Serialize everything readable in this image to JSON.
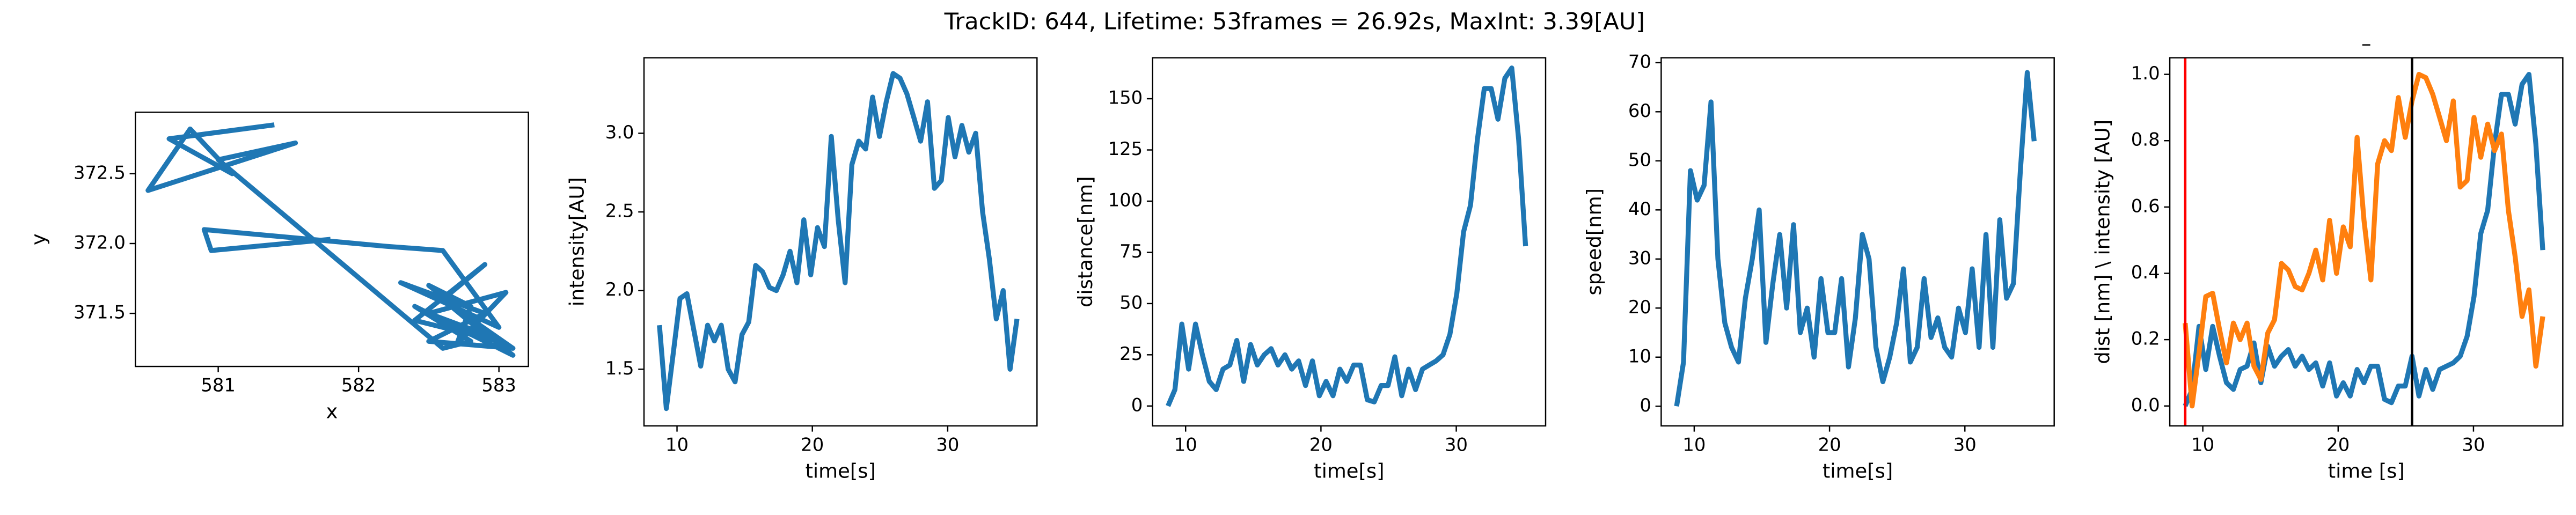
{
  "title": "TrackID: 644, Lifetime: 53frames = 26.92s, MaxInt: 3.39[AU]",
  "chart_data": [
    {
      "type": "line",
      "xlabel": "x",
      "ylabel": "y",
      "x": [
        581.8,
        580.95,
        580.9,
        582.2,
        582.6,
        583.0,
        582.3,
        582.9,
        582.5,
        583.1,
        582.6,
        582.9,
        582.4,
        583.0,
        582.5,
        582.8,
        582.7,
        583.05,
        582.5,
        582.9,
        582.6,
        583.1,
        582.4,
        582.8,
        582.6,
        581.0,
        581.55,
        580.5,
        580.8,
        581.1,
        580.65,
        581.4
      ],
      "series": [
        {
          "color": "#1f77b4",
          "values": [
            372.03,
            371.95,
            372.1,
            371.98,
            371.95,
            371.4,
            371.72,
            371.5,
            371.3,
            371.25,
            371.6,
            371.85,
            371.45,
            371.3,
            371.7,
            371.55,
            371.28,
            371.65,
            371.5,
            371.35,
            371.6,
            371.2,
            371.55,
            371.3,
            371.25,
            372.6,
            372.72,
            372.38,
            372.82,
            372.5,
            372.75,
            372.85
          ]
        }
      ],
      "xlim": [
        580.41,
        583.21
      ],
      "ylim": [
        371.12,
        372.94
      ],
      "xticks": [
        581,
        582,
        583
      ],
      "yticks": [
        371.5,
        {
          "value": 372,
          "label": "372.0"
        },
        372.5
      ]
    },
    {
      "type": "line",
      "xlabel": "time[s]",
      "ylabel": "intensity[AU]",
      "x": [
        8.7,
        9.21,
        9.72,
        10.22,
        10.73,
        11.24,
        11.75,
        12.26,
        12.76,
        13.27,
        13.78,
        14.29,
        14.8,
        15.3,
        15.81,
        16.32,
        16.83,
        17.34,
        17.84,
        18.35,
        18.86,
        19.37,
        19.88,
        20.38,
        20.89,
        21.4,
        21.91,
        22.42,
        22.92,
        23.43,
        23.94,
        24.45,
        24.96,
        25.46,
        25.97,
        26.48,
        26.99,
        27.5,
        28.0,
        28.51,
        29.02,
        29.53,
        30.04,
        30.54,
        31.05,
        31.56,
        32.07,
        32.58,
        33.08,
        33.59,
        34.1,
        34.61,
        35.12
      ],
      "series": [
        {
          "color": "#1f77b4",
          "values": [
            1.78,
            1.25,
            1.6,
            1.95,
            1.98,
            1.75,
            1.52,
            1.78,
            1.68,
            1.78,
            1.5,
            1.42,
            1.72,
            1.8,
            2.16,
            2.12,
            2.02,
            2.0,
            2.1,
            2.25,
            2.05,
            2.45,
            2.1,
            2.4,
            2.28,
            2.98,
            2.45,
            2.05,
            2.8,
            2.95,
            2.9,
            3.23,
            2.98,
            3.2,
            3.38,
            3.35,
            3.25,
            3.1,
            2.95,
            3.2,
            2.65,
            2.7,
            3.1,
            2.85,
            3.05,
            2.88,
            3.0,
            2.5,
            2.2,
            1.82,
            2.0,
            1.5,
            1.82
          ]
        }
      ],
      "xlim": [
        7.56,
        36.6
      ],
      "ylim": [
        1.14,
        3.48
      ],
      "xticks": [
        10,
        20,
        30
      ],
      "yticks": [
        1.5,
        {
          "value": 2,
          "label": "2.0"
        },
        2.5,
        {
          "value": 3,
          "label": "3.0"
        }
      ]
    },
    {
      "type": "line",
      "xlabel": "time[s]",
      "ylabel": "distance[nm]",
      "x": [
        8.7,
        9.21,
        9.72,
        10.22,
        10.73,
        11.24,
        11.75,
        12.26,
        12.76,
        13.27,
        13.78,
        14.29,
        14.8,
        15.3,
        15.81,
        16.32,
        16.83,
        17.34,
        17.84,
        18.35,
        18.86,
        19.37,
        19.88,
        20.38,
        20.89,
        21.4,
        21.91,
        22.42,
        22.92,
        23.43,
        23.94,
        24.45,
        24.96,
        25.46,
        25.97,
        26.48,
        26.99,
        27.5,
        28.0,
        28.51,
        29.02,
        29.53,
        30.04,
        30.54,
        31.05,
        31.56,
        32.07,
        32.58,
        33.08,
        33.59,
        34.1,
        34.61,
        35.12
      ],
      "series": [
        {
          "color": "#1f77b4",
          "values": [
            0,
            8,
            40,
            18,
            40,
            25,
            12,
            8,
            18,
            20,
            32,
            12,
            30,
            20,
            25,
            28,
            20,
            25,
            18,
            22,
            10,
            22,
            5,
            12,
            5,
            18,
            12,
            20,
            20,
            3,
            2,
            10,
            10,
            24,
            5,
            18,
            8,
            18,
            20,
            22,
            25,
            35,
            55,
            85,
            98,
            130,
            155,
            155,
            140,
            160,
            165,
            130,
            78
          ]
        }
      ],
      "xlim": [
        7.56,
        36.6
      ],
      "ylim": [
        -9.7,
        170
      ],
      "xticks": [
        10,
        20,
        30
      ],
      "yticks": [
        0,
        25,
        50,
        75,
        100,
        125,
        150
      ]
    },
    {
      "type": "line",
      "xlabel": "time[s]",
      "ylabel": "speed[nm]",
      "x": [
        8.7,
        9.21,
        9.72,
        10.22,
        10.73,
        11.24,
        11.75,
        12.26,
        12.76,
        13.27,
        13.78,
        14.29,
        14.8,
        15.3,
        15.81,
        16.32,
        16.83,
        17.34,
        17.84,
        18.35,
        18.86,
        19.37,
        19.88,
        20.38,
        20.89,
        21.4,
        21.91,
        22.42,
        22.92,
        23.43,
        23.94,
        24.45,
        24.96,
        25.46,
        25.97,
        26.48,
        26.99,
        27.5,
        28.0,
        28.51,
        29.02,
        29.53,
        30.04,
        30.54,
        31.05,
        31.56,
        32.07,
        32.58,
        33.08,
        33.59,
        34.1,
        34.61,
        35.12
      ],
      "series": [
        {
          "color": "#1f77b4",
          "values": [
            0,
            9,
            48,
            42,
            45,
            62,
            30,
            17,
            12,
            9,
            22,
            30,
            40,
            13,
            25,
            35,
            20,
            37,
            15,
            20,
            10,
            26,
            15,
            15,
            26,
            8,
            18,
            35,
            30,
            12,
            5,
            10,
            17,
            28,
            9,
            12,
            26,
            14,
            18,
            12,
            10,
            20,
            15,
            28,
            12,
            35,
            12,
            38,
            22,
            25,
            48,
            68,
            54
          ]
        }
      ],
      "xlim": [
        7.56,
        36.6
      ],
      "ylim": [
        -4,
        71
      ],
      "xticks": [
        10,
        20,
        30
      ],
      "yticks": [
        0,
        10,
        20,
        30,
        40,
        50,
        60,
        70
      ]
    },
    {
      "type": "line",
      "title": "–",
      "xlabel": "time [s]",
      "ylabel": "dist [nm] \\ intensity [AU]",
      "x": [
        8.7,
        9.21,
        9.72,
        10.22,
        10.73,
        11.24,
        11.75,
        12.26,
        12.76,
        13.27,
        13.78,
        14.29,
        14.8,
        15.3,
        15.81,
        16.32,
        16.83,
        17.34,
        17.84,
        18.35,
        18.86,
        19.37,
        19.88,
        20.38,
        20.89,
        21.4,
        21.91,
        22.42,
        22.92,
        23.43,
        23.94,
        24.45,
        24.96,
        25.46,
        25.97,
        26.48,
        26.99,
        27.5,
        28.0,
        28.51,
        29.02,
        29.53,
        30.04,
        30.54,
        31.05,
        31.56,
        32.07,
        32.58,
        33.08,
        33.59,
        34.1,
        34.61,
        35.12
      ],
      "series": [
        {
          "color": "#1f77b4",
          "values": [
            0,
            0.05,
            0.24,
            0.11,
            0.24,
            0.15,
            0.07,
            0.05,
            0.11,
            0.12,
            0.19,
            0.07,
            0.18,
            0.12,
            0.15,
            0.17,
            0.12,
            0.15,
            0.11,
            0.13,
            0.06,
            0.13,
            0.03,
            0.07,
            0.03,
            0.11,
            0.07,
            0.12,
            0.12,
            0.02,
            0.01,
            0.06,
            0.06,
            0.15,
            0.03,
            0.11,
            0.05,
            0.11,
            0.12,
            0.13,
            0.15,
            0.21,
            0.33,
            0.52,
            0.59,
            0.79,
            0.94,
            0.94,
            0.85,
            0.97,
            1.0,
            0.79,
            0.47
          ]
        },
        {
          "color": "#ff7f0e",
          "values": [
            0.25,
            0,
            0.16,
            0.33,
            0.34,
            0.23,
            0.13,
            0.25,
            0.2,
            0.25,
            0.12,
            0.08,
            0.22,
            0.26,
            0.43,
            0.41,
            0.36,
            0.35,
            0.4,
            0.47,
            0.38,
            0.56,
            0.4,
            0.54,
            0.48,
            0.81,
            0.56,
            0.38,
            0.73,
            0.8,
            0.77,
            0.93,
            0.81,
            0.92,
            1.0,
            0.99,
            0.94,
            0.87,
            0.8,
            0.92,
            0.66,
            0.68,
            0.87,
            0.75,
            0.85,
            0.77,
            0.82,
            0.59,
            0.45,
            0.27,
            0.35,
            0.12,
            0.27
          ]
        }
      ],
      "vlines": [
        {
          "x": 8.7,
          "color": "#ff0000"
        },
        {
          "x": 25.46,
          "color": "#000000"
        }
      ],
      "xlim": [
        7.56,
        36.6
      ],
      "ylim": [
        -0.06,
        1.05
      ],
      "xticks": [
        10,
        20,
        30
      ],
      "yticks": [
        {
          "value": 0,
          "label": "0.0"
        },
        0.2,
        0.4,
        0.6,
        0.8,
        {
          "value": 1,
          "label": "1.0"
        }
      ]
    }
  ]
}
